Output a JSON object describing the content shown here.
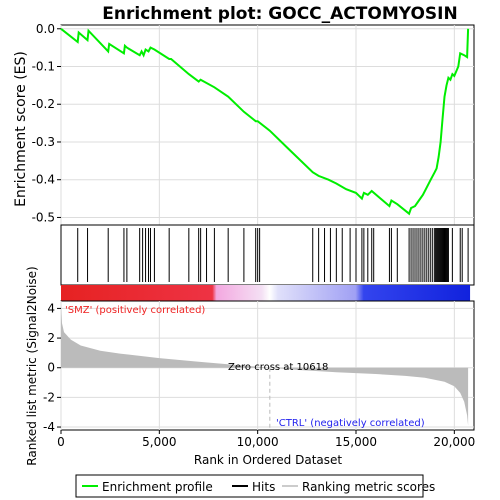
{
  "chart_data": {
    "type": "line",
    "title": "Enrichment plot: GOCC_ACTOMYOSIN",
    "ylabel_top": "Enrichment score (ES)",
    "ylabel_bottom": "Ranked list metric (Signal2Noise)",
    "xlabel": "Rank in Ordered Dataset",
    "x_ticks": [
      "0",
      "5,000",
      "10,000",
      "15,000",
      "20,000"
    ],
    "x_tick_values": [
      0,
      5000,
      10000,
      15000,
      20000
    ],
    "es_y_ticks": [
      "0.0",
      "-0.1",
      "-0.2",
      "-0.3",
      "-0.4",
      "-0.5"
    ],
    "es_y_tick_values": [
      0.0,
      -0.1,
      -0.2,
      -0.3,
      -0.4,
      -0.5
    ],
    "metric_y_ticks": [
      "4",
      "2",
      "0",
      "-2",
      "-4"
    ],
    "metric_y_tick_values": [
      4,
      2,
      0,
      -2,
      -4
    ],
    "xlim": [
      0,
      21000
    ],
    "es_ylim": [
      -0.52,
      0.01
    ],
    "metric_ylim": [
      -4.2,
      4.5
    ],
    "n_genes": 20800,
    "zero_cross_label": "Zero cross at 10618",
    "zero_cross": 10618,
    "pos_label": "'SMZ' (positively correlated)",
    "neg_label": "'CTRL' (negatively correlated)",
    "legend": [
      "Enrichment profile",
      "Hits",
      "Ranking metric scores"
    ],
    "colors": {
      "enrichment": "#00ee00",
      "hits": "#000000",
      "metric_fill": "#bbbbbb",
      "positive": "#ee2222",
      "negative": "#2222ee"
    },
    "enrichment_profile": [
      [
        0,
        0.0
      ],
      [
        850,
        -0.035
      ],
      [
        900,
        -0.01
      ],
      [
        1350,
        -0.03
      ],
      [
        1400,
        -0.005
      ],
      [
        2400,
        -0.06
      ],
      [
        2450,
        -0.04
      ],
      [
        3200,
        -0.065
      ],
      [
        3250,
        -0.045
      ],
      [
        3350,
        -0.05
      ],
      [
        4000,
        -0.07
      ],
      [
        4100,
        -0.06
      ],
      [
        4200,
        -0.07
      ],
      [
        4300,
        -0.055
      ],
      [
        4450,
        -0.06
      ],
      [
        4550,
        -0.05
      ],
      [
        4750,
        -0.055
      ],
      [
        5500,
        -0.08
      ],
      [
        5600,
        -0.08
      ],
      [
        6500,
        -0.12
      ],
      [
        7000,
        -0.14
      ],
      [
        7100,
        -0.135
      ],
      [
        7800,
        -0.155
      ],
      [
        8500,
        -0.18
      ],
      [
        9300,
        -0.22
      ],
      [
        9900,
        -0.245
      ],
      [
        10000,
        -0.245
      ],
      [
        10618,
        -0.27
      ],
      [
        11500,
        -0.315
      ],
      [
        12800,
        -0.38
      ],
      [
        13100,
        -0.39
      ],
      [
        13600,
        -0.4
      ],
      [
        14000,
        -0.41
      ],
      [
        14500,
        -0.425
      ],
      [
        15000,
        -0.435
      ],
      [
        15300,
        -0.45
      ],
      [
        15400,
        -0.435
      ],
      [
        15600,
        -0.44
      ],
      [
        15800,
        -0.43
      ],
      [
        16700,
        -0.47
      ],
      [
        16800,
        -0.455
      ],
      [
        17100,
        -0.465
      ],
      [
        17700,
        -0.49
      ],
      [
        17800,
        -0.475
      ],
      [
        18000,
        -0.47
      ],
      [
        18200,
        -0.455
      ],
      [
        18400,
        -0.44
      ],
      [
        18600,
        -0.42
      ],
      [
        18800,
        -0.4
      ],
      [
        19000,
        -0.38
      ],
      [
        19100,
        -0.37
      ],
      [
        19200,
        -0.34
      ],
      [
        19300,
        -0.3
      ],
      [
        19400,
        -0.24
      ],
      [
        19500,
        -0.18
      ],
      [
        19600,
        -0.15
      ],
      [
        19700,
        -0.13
      ],
      [
        19800,
        -0.135
      ],
      [
        19900,
        -0.12
      ],
      [
        20000,
        -0.125
      ],
      [
        20200,
        -0.1
      ],
      [
        20300,
        -0.065
      ],
      [
        20500,
        -0.07
      ],
      [
        20650,
        -0.075
      ],
      [
        20700,
        0.0
      ]
    ],
    "hits": [
      850,
      1350,
      2400,
      3200,
      3350,
      4000,
      4150,
      4300,
      4450,
      4550,
      4750,
      5500,
      6500,
      7000,
      7100,
      7400,
      7800,
      8500,
      9300,
      9900,
      10000,
      10100,
      12800,
      13100,
      13400,
      13700,
      14000,
      14300,
      14700,
      15000,
      15300,
      15400,
      15600,
      15800,
      15900,
      16700,
      16800,
      17100,
      17700,
      17800,
      17900,
      18000,
      18100,
      18200,
      18300,
      18400,
      18500,
      18600,
      18700,
      18800,
      18900,
      19000,
      19050,
      19100,
      19150,
      19200,
      19250,
      19300,
      19350,
      19400,
      19450,
      19500,
      19550,
      19600,
      19650,
      19700,
      19900,
      20300,
      20400,
      20700
    ],
    "metric_curve": [
      [
        0,
        4.3
      ],
      [
        50,
        3.0
      ],
      [
        150,
        2.4
      ],
      [
        500,
        1.9
      ],
      [
        1000,
        1.5
      ],
      [
        2000,
        1.15
      ],
      [
        3000,
        0.95
      ],
      [
        5000,
        0.65
      ],
      [
        7000,
        0.4
      ],
      [
        9000,
        0.18
      ],
      [
        10618,
        0.0
      ],
      [
        12000,
        -0.15
      ],
      [
        14000,
        -0.3
      ],
      [
        16000,
        -0.42
      ],
      [
        17500,
        -0.55
      ],
      [
        18500,
        -0.68
      ],
      [
        19500,
        -0.95
      ],
      [
        20000,
        -1.25
      ],
      [
        20300,
        -1.7
      ],
      [
        20500,
        -2.3
      ],
      [
        20650,
        -3.2
      ],
      [
        20700,
        -3.9
      ]
    ]
  }
}
